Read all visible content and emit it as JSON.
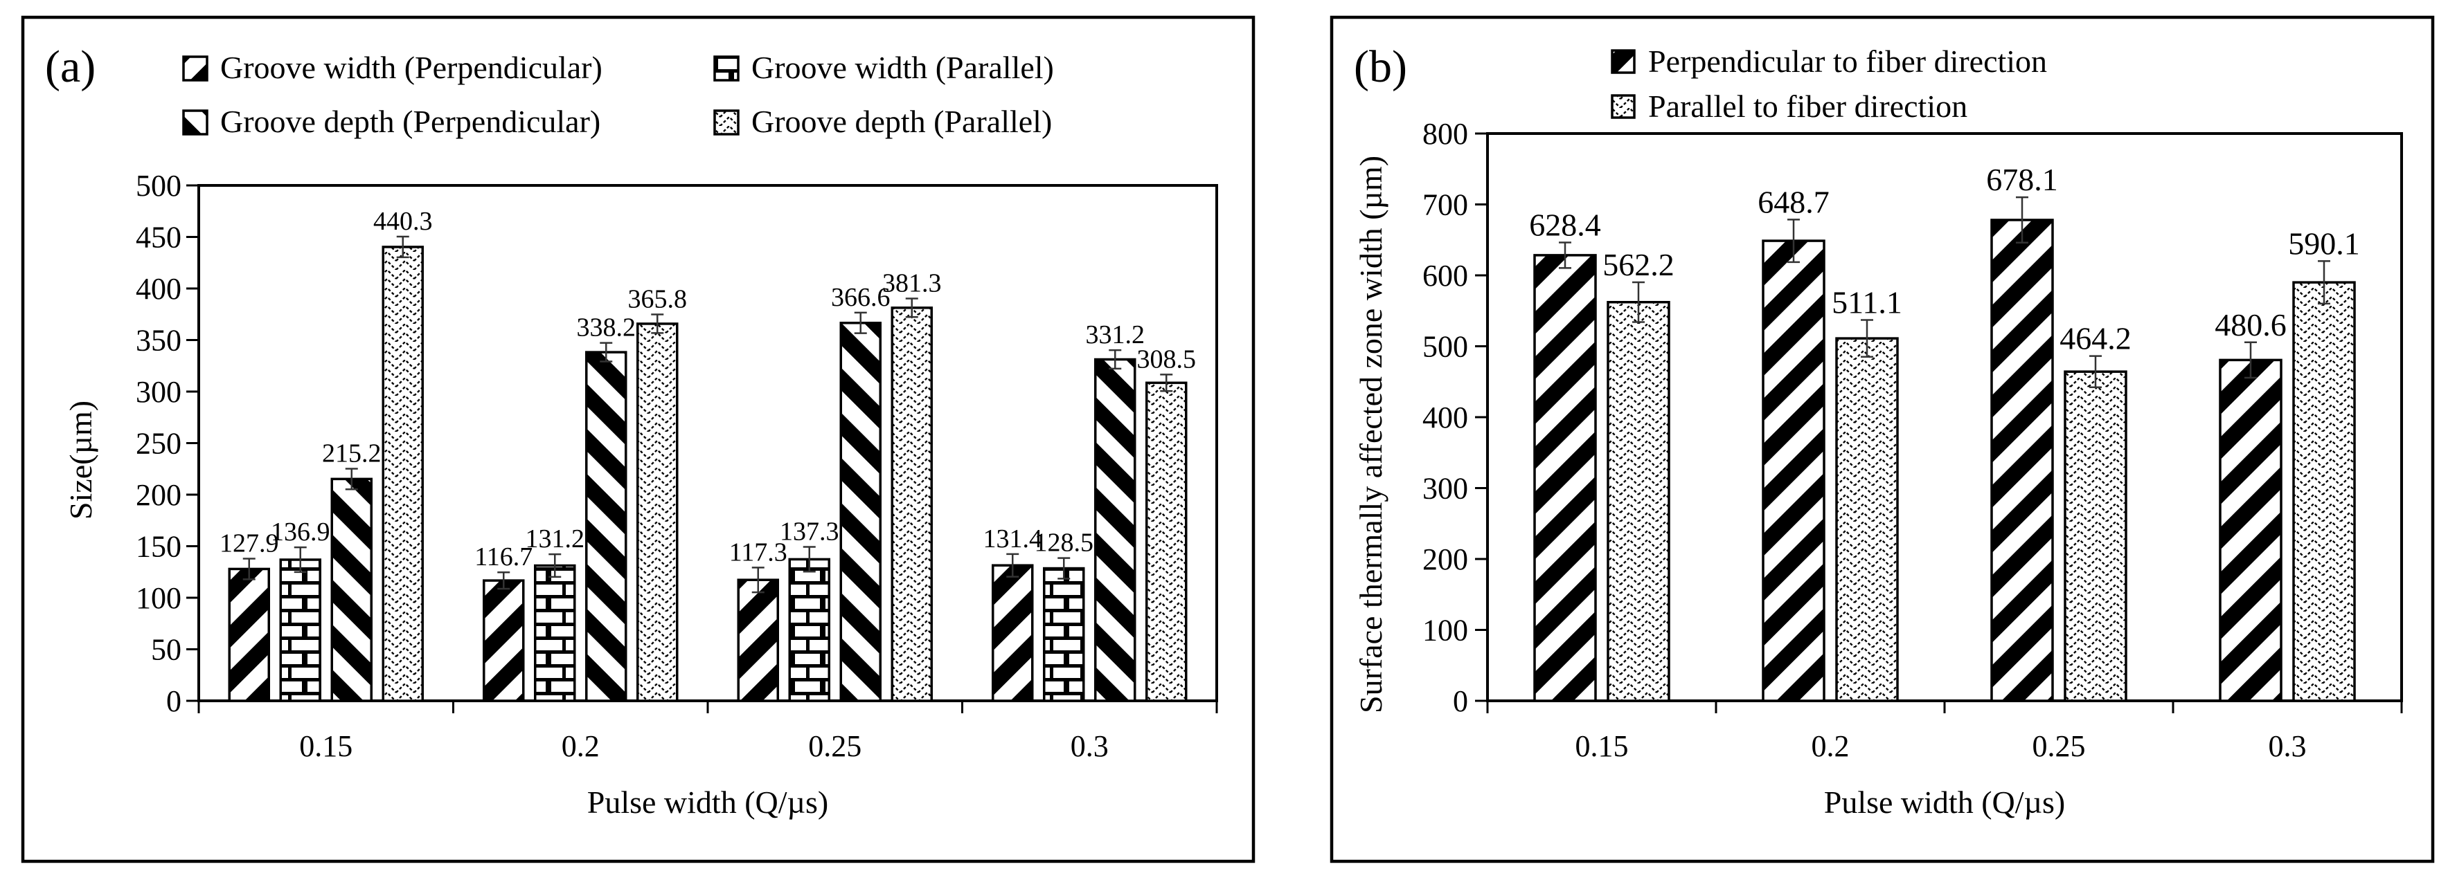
{
  "chart_data": [
    {
      "type": "bar",
      "panel_label": "(a)",
      "categories": [
        "0.15",
        "0.2",
        "0.25",
        "0.3"
      ],
      "series": [
        {
          "name": "Groove width (Perpendicular)",
          "pattern": "diag-left",
          "values": [
            127.9,
            116.7,
            117.3,
            131.4
          ],
          "labels": [
            "127.9",
            "116.7",
            "117.3",
            "131.4"
          ],
          "errors": [
            10,
            8,
            12,
            11
          ]
        },
        {
          "name": "Groove width (Parallel)",
          "pattern": "brick",
          "values": [
            136.9,
            131.2,
            137.3,
            128.5
          ],
          "labels": [
            "136.9",
            "131.2",
            "137.3",
            "128.5"
          ],
          "errors": [
            12,
            11,
            12,
            10
          ]
        },
        {
          "name": "Groove depth (Perpendicular)",
          "pattern": "diag-right",
          "values": [
            215.2,
            338.2,
            366.6,
            331.2
          ],
          "labels": [
            "215.2",
            "338.2",
            "366.6",
            "331.2"
          ],
          "errors": [
            10,
            9,
            10,
            9
          ]
        },
        {
          "name": "Groove depth (Parallel)",
          "pattern": "zigzag",
          "values": [
            440.3,
            365.8,
            381.3,
            308.5
          ],
          "labels": [
            "440.3",
            "365.8",
            "381.3",
            "308.5"
          ],
          "errors": [
            10,
            9,
            9,
            8
          ]
        }
      ],
      "title": "",
      "xlabel": "Pulse width (Q/µs)",
      "ylabel": "Size(µm)",
      "ylim": [
        0,
        500
      ],
      "yticks": [
        "0",
        "50",
        "100",
        "150",
        "200",
        "250",
        "300",
        "350",
        "400",
        "450",
        "500"
      ],
      "grid": false,
      "legend_position": "top"
    },
    {
      "type": "bar",
      "panel_label": "(b)",
      "categories": [
        "0.15",
        "0.2",
        "0.25",
        "0.3"
      ],
      "series": [
        {
          "name": "Perpendicular to fiber direction",
          "pattern": "diag-left",
          "values": [
            628.4,
            648.7,
            678.1,
            480.6
          ],
          "labels": [
            "628.4",
            "648.7",
            "678.1",
            "480.6"
          ],
          "errors": [
            18,
            30,
            32,
            25
          ]
        },
        {
          "name": "Parallel to fiber direction",
          "pattern": "zigzag",
          "values": [
            562.2,
            511.1,
            464.2,
            590.1
          ],
          "labels": [
            "562.2",
            "511.1",
            "464.2",
            "590.1"
          ],
          "errors": [
            28,
            26,
            22,
            30
          ]
        }
      ],
      "title": "",
      "xlabel": "Pulse width (Q/µs)",
      "ylabel": "Surface thermally affected zone width (µm)",
      "ylim": [
        0,
        800
      ],
      "yticks": [
        "0",
        "100",
        "200",
        "300",
        "400",
        "500",
        "600",
        "700",
        "800"
      ],
      "grid": false,
      "legend_position": "top"
    }
  ]
}
